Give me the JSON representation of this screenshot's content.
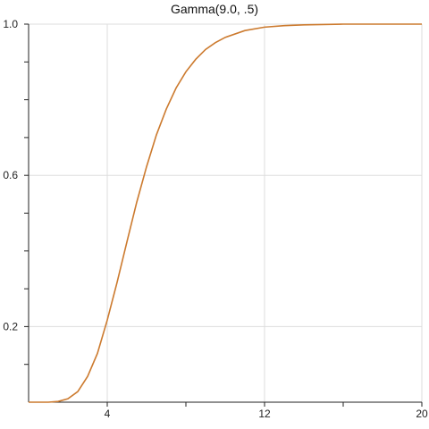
{
  "chart_data": {
    "type": "line",
    "title": "Gamma(9.0, .5)",
    "xlabel": "",
    "ylabel": "",
    "xlim": [
      0,
      20
    ],
    "ylim": [
      0,
      1.0
    ],
    "grid": true,
    "x_ticks": [
      {
        "value": 4,
        "label": "4"
      },
      {
        "value": 12,
        "label": "12"
      },
      {
        "value": 20,
        "label": "20"
      }
    ],
    "x_minor_ticks": [
      8,
      16
    ],
    "y_ticks": [
      {
        "value": 0.2,
        "label": "0.2"
      },
      {
        "value": 0.6,
        "label": "0.6"
      },
      {
        "value": 1.0,
        "label": "1.0"
      }
    ],
    "y_minor_ticks": [
      0.1,
      0.3,
      0.4,
      0.5,
      0.7,
      0.8,
      0.9
    ],
    "series": [
      {
        "color": "#cc7a2e",
        "x": [
          0,
          0.5,
          1.0,
          1.5,
          2.0,
          2.5,
          3.0,
          3.5,
          4.0,
          4.5,
          5.0,
          5.5,
          6.0,
          6.5,
          7.0,
          7.5,
          8.0,
          8.5,
          9.0,
          9.5,
          10.0,
          11.0,
          12.0,
          13.0,
          14.0,
          16.0,
          18.0,
          20.0
        ],
        "y": [
          0.0,
          0.0,
          0.0,
          0.002,
          0.009,
          0.028,
          0.068,
          0.129,
          0.217,
          0.317,
          0.424,
          0.529,
          0.623,
          0.707,
          0.775,
          0.831,
          0.874,
          0.907,
          0.933,
          0.951,
          0.965,
          0.983,
          0.992,
          0.996,
          0.998,
          1.0,
          1.0,
          1.0
        ]
      }
    ]
  }
}
